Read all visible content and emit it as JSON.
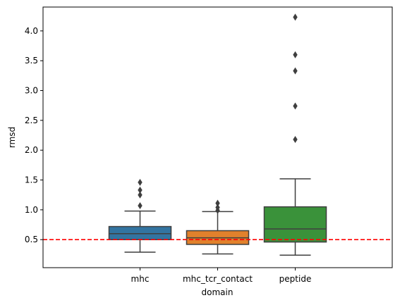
{
  "chart_data": {
    "type": "box",
    "xlabel": "domain",
    "ylabel": "rmsd",
    "ylim": [
      0.03,
      4.4
    ],
    "yticks": [
      0.5,
      1.0,
      1.5,
      2.0,
      2.5,
      3.0,
      3.5,
      4.0
    ],
    "yticklabels": [
      "0.5",
      "1.0",
      "1.5",
      "2.0",
      "2.5",
      "3.0",
      "3.5",
      "4.0"
    ],
    "grid": false,
    "reference_line": {
      "y": 0.5,
      "color": "#ff0000",
      "style": "dashed"
    },
    "categories": [
      "mhc",
      "mhc_tcr_contact",
      "peptide"
    ],
    "boxes": [
      {
        "name": "mhc",
        "color": "#3274a1",
        "whisker_low": 0.29,
        "q1": 0.5,
        "median": 0.6,
        "q3": 0.72,
        "whisker_high": 0.98,
        "outliers": [
          1.07,
          1.25,
          1.33,
          1.46
        ]
      },
      {
        "name": "mhc_tcr_contact",
        "color": "#e1812c",
        "whisker_low": 0.26,
        "q1": 0.42,
        "median": 0.53,
        "q3": 0.65,
        "whisker_high": 0.97,
        "outliers": [
          0.99,
          1.04,
          1.11
        ]
      },
      {
        "name": "peptide",
        "color": "#3a923a",
        "whisker_low": 0.24,
        "q1": 0.46,
        "median": 0.68,
        "q3": 1.05,
        "whisker_high": 1.52,
        "outliers": [
          2.18,
          2.74,
          3.33,
          3.6,
          4.23
        ]
      }
    ]
  }
}
